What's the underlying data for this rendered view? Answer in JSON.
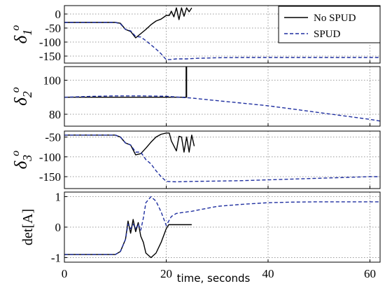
{
  "chart_data": [
    {
      "type": "line",
      "ylabel": "δ1 o",
      "xlim": [
        0,
        62
      ],
      "ylim": [
        -175,
        30
      ],
      "yticks": [
        0,
        -50,
        -100,
        -150
      ],
      "xticks": [
        20,
        40,
        60
      ],
      "grid": true,
      "legend": {
        "placement": "top-right",
        "entries": [
          "No SPUD",
          "SPUD"
        ]
      },
      "series": [
        {
          "name": "No SPUD",
          "color": "#000000",
          "style": "solid",
          "x": [
            0,
            5,
            10,
            11,
            12,
            13,
            14,
            15,
            16,
            17,
            18,
            19,
            20,
            20.6,
            21,
            21.5,
            22,
            22.5,
            23,
            23.5,
            24,
            24.5,
            25
          ],
          "y": [
            -30,
            -30,
            -30,
            -33,
            -55,
            -62,
            -85,
            -70,
            -55,
            -38,
            -25,
            -18,
            -5,
            -5,
            10,
            -10,
            22,
            -20,
            22,
            -8,
            22,
            8,
            22
          ]
        },
        {
          "name": "SPUD",
          "color": "#1f2fa0",
          "style": "dashed",
          "x": [
            0,
            5,
            10,
            11,
            12,
            13,
            14,
            15,
            16,
            17,
            18,
            19,
            20,
            21,
            22,
            24,
            26,
            30,
            35,
            40,
            45,
            50,
            55,
            60,
            62
          ],
          "y": [
            -30,
            -30,
            -30,
            -35,
            -55,
            -60,
            -80,
            -82,
            -95,
            -110,
            -125,
            -142,
            -163,
            -162,
            -160,
            -160,
            -158,
            -156,
            -155,
            -155,
            -155,
            -155,
            -155,
            -155,
            -155
          ]
        }
      ]
    },
    {
      "type": "line",
      "ylabel": "δ2 o",
      "xlim": [
        0,
        62
      ],
      "ylim": [
        73,
        108
      ],
      "yticks": [
        100,
        80
      ],
      "xticks": [
        20,
        40,
        60
      ],
      "grid": true,
      "series": [
        {
          "name": "No SPUD",
          "color": "#000000",
          "style": "solid",
          "x": [
            0,
            5,
            10,
            15,
            20,
            23.9,
            23.9,
            24,
            24,
            24.1
          ],
          "y": [
            90,
            90,
            90,
            90,
            90,
            90,
            108,
            108,
            90,
            90
          ]
        },
        {
          "name": "SPUD",
          "color": "#1f2fa0",
          "style": "dashed",
          "x": [
            0,
            5,
            10,
            15,
            20,
            25,
            30,
            35,
            40,
            45,
            50,
            55,
            60,
            62
          ],
          "y": [
            90,
            90.5,
            90.8,
            90.8,
            90.6,
            89.5,
            88,
            86.5,
            85,
            83,
            81,
            79,
            77,
            76
          ]
        }
      ]
    },
    {
      "type": "line",
      "ylabel": "δ3 o",
      "xlim": [
        0,
        62
      ],
      "ylim": [
        -180,
        -35
      ],
      "yticks": [
        -50,
        -100,
        -150
      ],
      "xticks": [
        20,
        40,
        60
      ],
      "grid": true,
      "series": [
        {
          "name": "No SPUD",
          "color": "#000000",
          "style": "solid",
          "x": [
            0,
            5,
            10,
            11,
            12,
            13,
            14,
            15,
            16,
            17,
            18,
            19,
            20,
            20.6,
            21,
            22,
            22.5,
            23,
            23.5,
            24,
            24.5,
            25,
            25.5
          ],
          "y": [
            -45,
            -45,
            -45,
            -50,
            -65,
            -70,
            -95,
            -92,
            -78,
            -63,
            -50,
            -43,
            -40,
            -40,
            -60,
            -85,
            -48,
            -50,
            -88,
            -50,
            -88,
            -45,
            -73
          ]
        },
        {
          "name": "SPUD",
          "color": "#1f2fa0",
          "style": "dashed",
          "x": [
            0,
            5,
            10,
            11,
            12,
            13,
            14,
            15,
            16,
            17,
            18,
            19,
            20,
            22,
            25,
            30,
            35,
            40,
            45,
            50,
            55,
            60,
            62
          ],
          "y": [
            -45,
            -45,
            -45,
            -50,
            -65,
            -70,
            -88,
            -88,
            -107,
            -118,
            -135,
            -150,
            -162,
            -163,
            -162,
            -161,
            -160,
            -158,
            -156,
            -154,
            -152,
            -150,
            -150
          ]
        }
      ]
    },
    {
      "type": "line",
      "ylabel": "det[A]",
      "xlabel": "time, seconds",
      "xlim": [
        0,
        62
      ],
      "ylim": [
        -1.15,
        1.15
      ],
      "yticks": [
        1,
        0,
        -1
      ],
      "xticks": [
        0,
        20,
        40,
        60
      ],
      "grid": true,
      "series": [
        {
          "name": "No SPUD",
          "color": "#000000",
          "style": "solid",
          "x": [
            0,
            5,
            10,
            11,
            12,
            12.5,
            13,
            13.5,
            14,
            14.5,
            15,
            15.5,
            16,
            17,
            18,
            19,
            20,
            20.5,
            22,
            25
          ],
          "y": [
            -0.9,
            -0.9,
            -0.9,
            -0.8,
            -0.4,
            0.2,
            -0.2,
            0.25,
            -0.15,
            0.15,
            -0.3,
            -0.5,
            -0.85,
            -1.0,
            -0.85,
            -0.5,
            -0.05,
            0.08,
            0.08,
            0.08
          ]
        },
        {
          "name": "SPUD",
          "color": "#1f2fa0",
          "style": "dashed",
          "x": [
            0,
            5,
            10,
            11,
            12,
            12.5,
            13,
            13.5,
            14,
            14.5,
            15,
            15.5,
            16,
            17,
            18,
            19,
            20,
            21,
            22,
            25,
            30,
            35,
            40,
            45,
            50,
            55,
            60,
            62
          ],
          "y": [
            -0.9,
            -0.9,
            -0.9,
            -0.8,
            -0.4,
            0.1,
            -0.05,
            0.1,
            -0.05,
            0.1,
            -0.1,
            0.3,
            0.8,
            1.0,
            0.85,
            0.5,
            0.05,
            0.35,
            0.45,
            0.52,
            0.68,
            0.75,
            0.8,
            0.82,
            0.83,
            0.83,
            0.83,
            0.83
          ]
        }
      ]
    }
  ]
}
